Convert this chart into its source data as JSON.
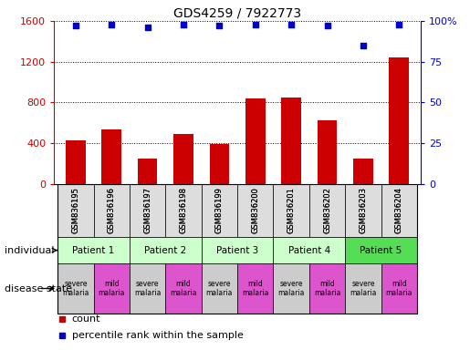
{
  "title": "GDS4259 / 7922773",
  "samples": [
    "GSM836195",
    "GSM836196",
    "GSM836197",
    "GSM836198",
    "GSM836199",
    "GSM836200",
    "GSM836201",
    "GSM836202",
    "GSM836203",
    "GSM836204"
  ],
  "counts": [
    430,
    530,
    250,
    490,
    390,
    840,
    850,
    620,
    250,
    1240
  ],
  "percentile_ranks": [
    97,
    98,
    96,
    98,
    97,
    98,
    98,
    97,
    85,
    98
  ],
  "bar_color": "#cc0000",
  "dot_color": "#0000cc",
  "ylim_left": [
    0,
    1600
  ],
  "ylim_right": [
    0,
    100
  ],
  "yticks_left": [
    0,
    400,
    800,
    1200,
    1600
  ],
  "ytick_labels_left": [
    "0",
    "400",
    "800",
    "1200",
    "1600"
  ],
  "yticks_right": [
    0,
    25,
    50,
    75,
    100
  ],
  "ytick_labels_right": [
    "0",
    "25",
    "50",
    "75",
    "100%"
  ],
  "patients": [
    {
      "label": "Patient 1",
      "cols": [
        0,
        1
      ],
      "color": "#ccffcc"
    },
    {
      "label": "Patient 2",
      "cols": [
        2,
        3
      ],
      "color": "#ccffcc"
    },
    {
      "label": "Patient 3",
      "cols": [
        4,
        5
      ],
      "color": "#ccffcc"
    },
    {
      "label": "Patient 4",
      "cols": [
        6,
        7
      ],
      "color": "#ccffcc"
    },
    {
      "label": "Patient 5",
      "cols": [
        8,
        9
      ],
      "color": "#55dd55"
    }
  ],
  "disease_states": [
    {
      "label": "severe\nmalaria",
      "col": 0,
      "color": "#cccccc"
    },
    {
      "label": "mild\nmalaria",
      "col": 1,
      "color": "#dd55cc"
    },
    {
      "label": "severe\nmalaria",
      "col": 2,
      "color": "#cccccc"
    },
    {
      "label": "mild\nmalaria",
      "col": 3,
      "color": "#dd55cc"
    },
    {
      "label": "severe\nmalaria",
      "col": 4,
      "color": "#cccccc"
    },
    {
      "label": "mild\nmalaria",
      "col": 5,
      "color": "#dd55cc"
    },
    {
      "label": "severe\nmalaria",
      "col": 6,
      "color": "#cccccc"
    },
    {
      "label": "mild\nmalaria",
      "col": 7,
      "color": "#dd55cc"
    },
    {
      "label": "severe\nmalaria",
      "col": 8,
      "color": "#cccccc"
    },
    {
      "label": "mild\nmalaria",
      "col": 9,
      "color": "#dd55cc"
    }
  ],
  "legend_count_color": "#cc0000",
  "legend_dot_color": "#0000cc",
  "legend_count_label": "count",
  "legend_dot_label": "percentile rank within the sample",
  "background_color": "#ffffff",
  "left_axis_color": "#cc0000",
  "right_axis_color": "#0000cc"
}
